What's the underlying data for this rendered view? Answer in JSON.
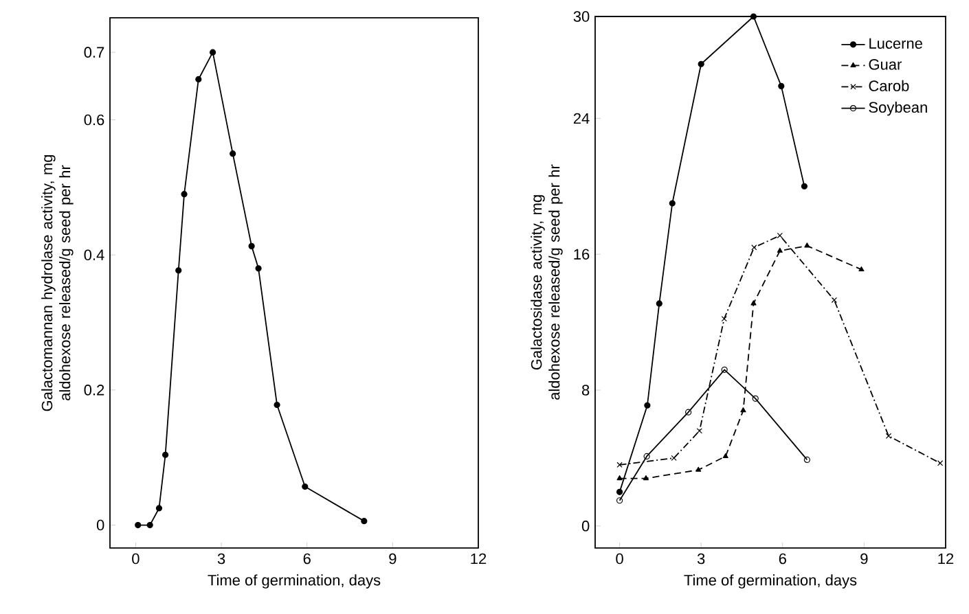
{
  "chart_data": [
    {
      "type": "line",
      "xlabel": "Time of  germination, days",
      "ylabel": "Galactomannan hydrolase activity, mg aldohexose released/g seed per hr",
      "marker": "circle",
      "line_style": "solid",
      "series": [
        {
          "color": "#000000",
          "x": [
            0.08,
            0.5,
            0.82,
            1.04,
            1.5,
            1.7,
            2.2,
            2.7,
            3.4,
            4.06,
            4.3,
            4.95,
            5.93,
            8.0
          ],
          "values": [
            0.0,
            0.0,
            0.025,
            0.104,
            0.377,
            0.49,
            0.66,
            0.7,
            0.55,
            0.413,
            0.38,
            0.178,
            0.057,
            0.006
          ]
        }
      ],
      "xlim": [
        -0.9,
        12
      ],
      "ylim": [
        -0.034,
        0.751
      ],
      "xticks": [
        0,
        3,
        6,
        9,
        12
      ],
      "yticks": [
        0,
        0.2,
        0.4,
        0.6,
        0.7
      ]
    },
    {
      "type": "line",
      "xlabel": "Time of germination, days",
      "ylabel": "Galactosidase activity, mg aldohexose released/g seed per hr",
      "legend": "top right",
      "series": [
        {
          "name": "Lucerne",
          "color": "#000000",
          "marker": "circle",
          "line_style": "solid",
          "x": [
            0,
            1.02,
            1.46,
            1.94,
            3.0,
            4.93,
            5.95,
            6.8
          ],
          "values": [
            2.0,
            7.1,
            13.1,
            19.0,
            27.2,
            30.0,
            25.9,
            20.0
          ]
        },
        {
          "name": "Guar",
          "color": "#000000",
          "marker": "triangle",
          "line_style": "dashed",
          "x": [
            0,
            0.97,
            2.9,
            3.9,
            4.55,
            4.93,
            5.9,
            6.9,
            8.9
          ],
          "values": [
            2.8,
            2.8,
            3.3,
            4.1,
            6.8,
            13.1,
            16.2,
            16.5,
            15.1
          ]
        },
        {
          "name": "Carob",
          "color": "#000000",
          "marker": "cross",
          "line_style": "dashdot",
          "x": [
            0,
            2.0,
            2.94,
            3.85,
            4.95,
            5.9,
            7.9,
            9.9,
            11.8
          ],
          "values": [
            3.6,
            4.0,
            5.6,
            12.2,
            16.4,
            17.1,
            13.3,
            5.3,
            3.7
          ]
        },
        {
          "name": "Soybean",
          "color": "#000000",
          "marker": "open circle",
          "line_style": "solid",
          "x": [
            0,
            1.0,
            2.53,
            3.86,
            5.0,
            6.9
          ],
          "values": [
            1.5,
            4.1,
            6.7,
            9.2,
            7.5,
            3.9
          ]
        }
      ],
      "xlim": [
        -0.9,
        12
      ],
      "ylim": [
        -1.3,
        30
      ],
      "xticks": [
        0,
        3,
        6,
        9,
        12
      ],
      "yticks": [
        0,
        8,
        16,
        24,
        30
      ]
    }
  ]
}
